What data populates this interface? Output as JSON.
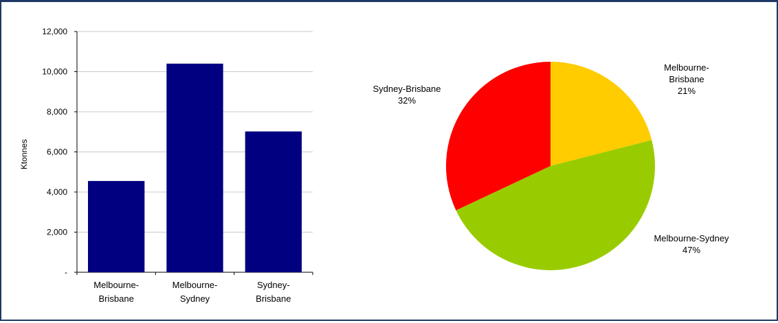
{
  "chart_data": [
    {
      "type": "bar",
      "categories": [
        [
          "Melbourne-",
          "Brisbane"
        ],
        [
          "Melbourne-",
          "Sydney"
        ],
        [
          "Sydney-",
          "Brisbane"
        ]
      ],
      "values": [
        4550,
        10400,
        7020
      ],
      "ylabel": "Ktonnes",
      "ylim": [
        0,
        12000
      ],
      "yticks": [
        0,
        2000,
        4000,
        6000,
        8000,
        10000,
        12000
      ],
      "ytick_labels": [
        "-",
        "2,000",
        "4,000",
        "6,000",
        "8,000",
        "10,000",
        "12,000"
      ],
      "grid": true,
      "bar_color": "#000080"
    },
    {
      "type": "pie",
      "slices": [
        {
          "label": [
            "Melbourne-",
            "Brisbane"
          ],
          "value": 21,
          "pct_label": "21%",
          "color": "#ffcc00"
        },
        {
          "label": [
            "Melbourne-Sydney"
          ],
          "value": 47,
          "pct_label": "47%",
          "color": "#99cc00"
        },
        {
          "label": [
            "Sydney-Brisbane"
          ],
          "value": 32,
          "pct_label": "32%",
          "color": "#ff0000"
        }
      ]
    }
  ]
}
